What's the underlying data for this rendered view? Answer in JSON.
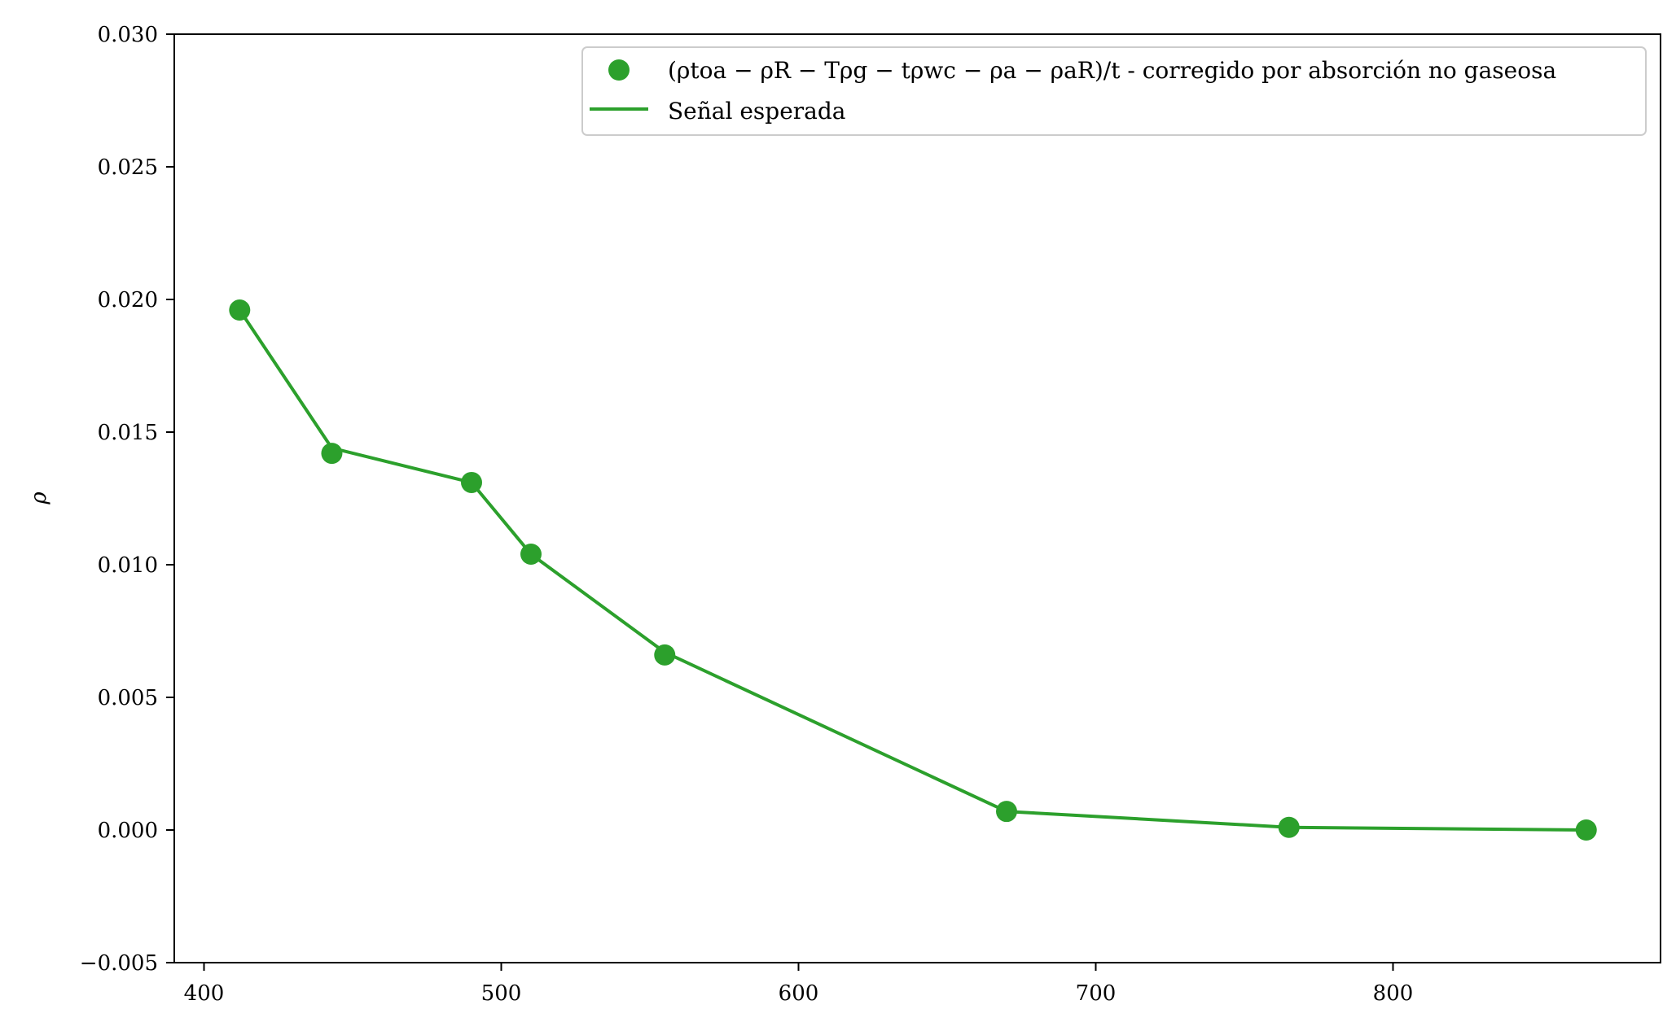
{
  "chart_data": {
    "type": "line",
    "title": "",
    "xlabel": "",
    "ylabel": "ρ",
    "xlim": [
      390,
      890
    ],
    "ylim": [
      -0.005,
      0.03
    ],
    "grid": false,
    "legend_position": "top-right",
    "x_ticks": [
      400,
      500,
      600,
      700,
      800
    ],
    "x_tick_labels": [
      "400",
      "500",
      "600",
      "700",
      "800"
    ],
    "y_ticks": [
      -0.005,
      0.0,
      0.005,
      0.01,
      0.015,
      0.02,
      0.025,
      0.03
    ],
    "y_tick_labels": [
      "−0.005",
      "0.000",
      "0.005",
      "0.010",
      "0.015",
      "0.020",
      "0.025",
      "0.030"
    ],
    "series": [
      {
        "name": "(ρtoa − ρR − Tρg − tρwc − ρa − ρaR)/t - corregido por absorción no gaseosa",
        "style": "markers",
        "color": "#2ca02c",
        "x": [
          412,
          443,
          490,
          510,
          555,
          670,
          765,
          865
        ],
        "y": [
          0.0196,
          0.0142,
          0.0131,
          0.0104,
          0.0066,
          0.0007,
          0.0001,
          0.0
        ]
      },
      {
        "name": "Señal esperada",
        "style": "line",
        "color": "#2ca02c",
        "x": [
          412,
          443,
          490,
          510,
          555,
          670,
          765,
          865
        ],
        "y": [
          0.0196,
          0.0144,
          0.0131,
          0.0104,
          0.0067,
          0.0007,
          0.0001,
          0.0
        ]
      }
    ]
  }
}
